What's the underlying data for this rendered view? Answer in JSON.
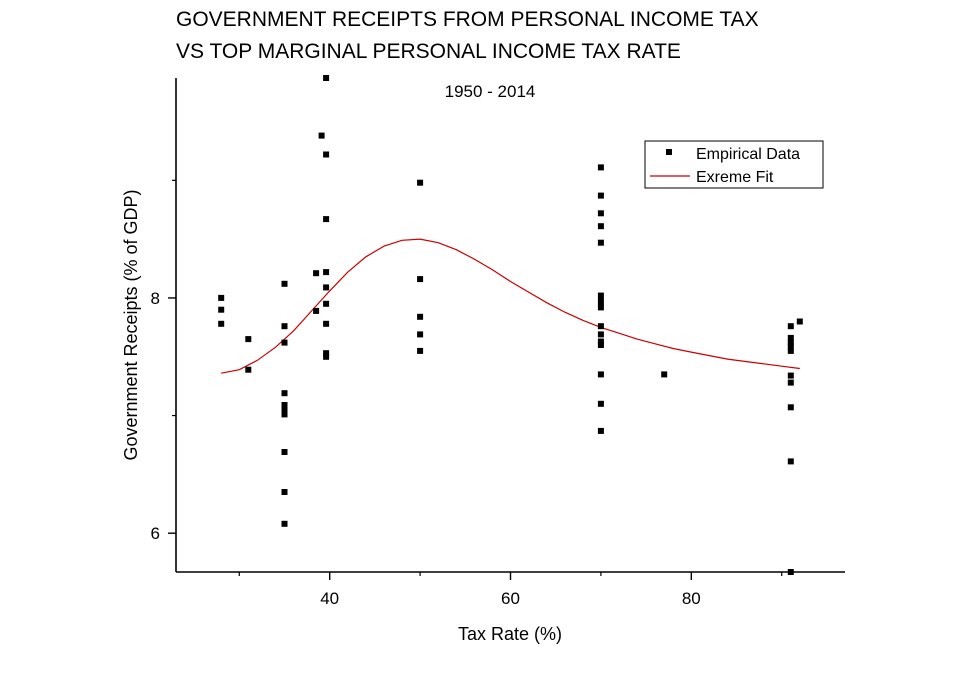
{
  "chart_data": {
    "type": "scatter",
    "title_lines": [
      "GOVERNMENT RECEIPTS FROM PERSONAL INCOME TAX",
      "VS TOP MARGINAL PERSONAL INCOME TAX RATE"
    ],
    "subtitle": "1950 - 2014",
    "xlabel": "Tax Rate (%)",
    "ylabel": "Government Receipts (% of GDP)",
    "xlim": [
      23,
      97
    ],
    "ylim": [
      5.67,
      9.87
    ],
    "x_ticks": [
      40,
      60,
      80
    ],
    "y_ticks": [
      6,
      8
    ],
    "x_tick_labels": [
      "40",
      "60",
      "80"
    ],
    "y_tick_labels": [
      "6",
      "8"
    ],
    "legend_position": "top-right",
    "legend": [
      {
        "label": "Empirical Data",
        "kind": "marker"
      },
      {
        "label": "Exreme Fit",
        "kind": "line"
      }
    ],
    "colors": {
      "data": "#000000",
      "fit": "#cc0000"
    },
    "series": [
      {
        "name": "Empirical Data",
        "points": [
          [
            28,
            8.0
          ],
          [
            28,
            7.9
          ],
          [
            28,
            7.78
          ],
          [
            31,
            7.65
          ],
          [
            31,
            7.39
          ],
          [
            35,
            8.12
          ],
          [
            35,
            7.76
          ],
          [
            35,
            7.62
          ],
          [
            35,
            7.19
          ],
          [
            35,
            7.09
          ],
          [
            35,
            7.06
          ],
          [
            35,
            7.01
          ],
          [
            35,
            6.69
          ],
          [
            35,
            6.35
          ],
          [
            35,
            6.08
          ],
          [
            38.5,
            8.21
          ],
          [
            38.5,
            7.89
          ],
          [
            39.1,
            9.38
          ],
          [
            39.6,
            9.87
          ],
          [
            39.6,
            9.22
          ],
          [
            39.6,
            8.67
          ],
          [
            39.6,
            8.22
          ],
          [
            39.6,
            8.09
          ],
          [
            39.6,
            7.95
          ],
          [
            39.6,
            7.78
          ],
          [
            39.6,
            7.53
          ],
          [
            39.6,
            7.5
          ],
          [
            50,
            8.98
          ],
          [
            50,
            8.16
          ],
          [
            50,
            7.84
          ],
          [
            50,
            7.69
          ],
          [
            50,
            7.55
          ],
          [
            70,
            9.11
          ],
          [
            70,
            8.87
          ],
          [
            70,
            8.72
          ],
          [
            70,
            8.61
          ],
          [
            70,
            8.47
          ],
          [
            70,
            8.02
          ],
          [
            70,
            7.97
          ],
          [
            70,
            7.92
          ],
          [
            70,
            7.76
          ],
          [
            70,
            7.69
          ],
          [
            70,
            7.63
          ],
          [
            70,
            7.6
          ],
          [
            70,
            7.35
          ],
          [
            70,
            7.1
          ],
          [
            70,
            6.87
          ],
          [
            77,
            7.35
          ],
          [
            91,
            7.76
          ],
          [
            91,
            7.66
          ],
          [
            91,
            7.62
          ],
          [
            91,
            7.59
          ],
          [
            91,
            7.55
          ],
          [
            91,
            7.34
          ],
          [
            91,
            7.28
          ],
          [
            91,
            7.07
          ],
          [
            91,
            6.61
          ],
          [
            91,
            5.67
          ],
          [
            92,
            7.8
          ]
        ]
      },
      {
        "name": "Exreme Fit",
        "points": [
          [
            28,
            7.36
          ],
          [
            30,
            7.39
          ],
          [
            32,
            7.47
          ],
          [
            34,
            7.58
          ],
          [
            36,
            7.72
          ],
          [
            38,
            7.89
          ],
          [
            40,
            8.06
          ],
          [
            42,
            8.22
          ],
          [
            44,
            8.35
          ],
          [
            46,
            8.44
          ],
          [
            48,
            8.49
          ],
          [
            50,
            8.5
          ],
          [
            52,
            8.47
          ],
          [
            54,
            8.41
          ],
          [
            56,
            8.33
          ],
          [
            58,
            8.24
          ],
          [
            60,
            8.14
          ],
          [
            62,
            8.05
          ],
          [
            64,
            7.96
          ],
          [
            66,
            7.88
          ],
          [
            68,
            7.81
          ],
          [
            70,
            7.75
          ],
          [
            72,
            7.7
          ],
          [
            74,
            7.65
          ],
          [
            76,
            7.61
          ],
          [
            78,
            7.57
          ],
          [
            80,
            7.54
          ],
          [
            82,
            7.51
          ],
          [
            84,
            7.48
          ],
          [
            86,
            7.46
          ],
          [
            88,
            7.44
          ],
          [
            90,
            7.42
          ],
          [
            92,
            7.4
          ]
        ]
      }
    ]
  }
}
